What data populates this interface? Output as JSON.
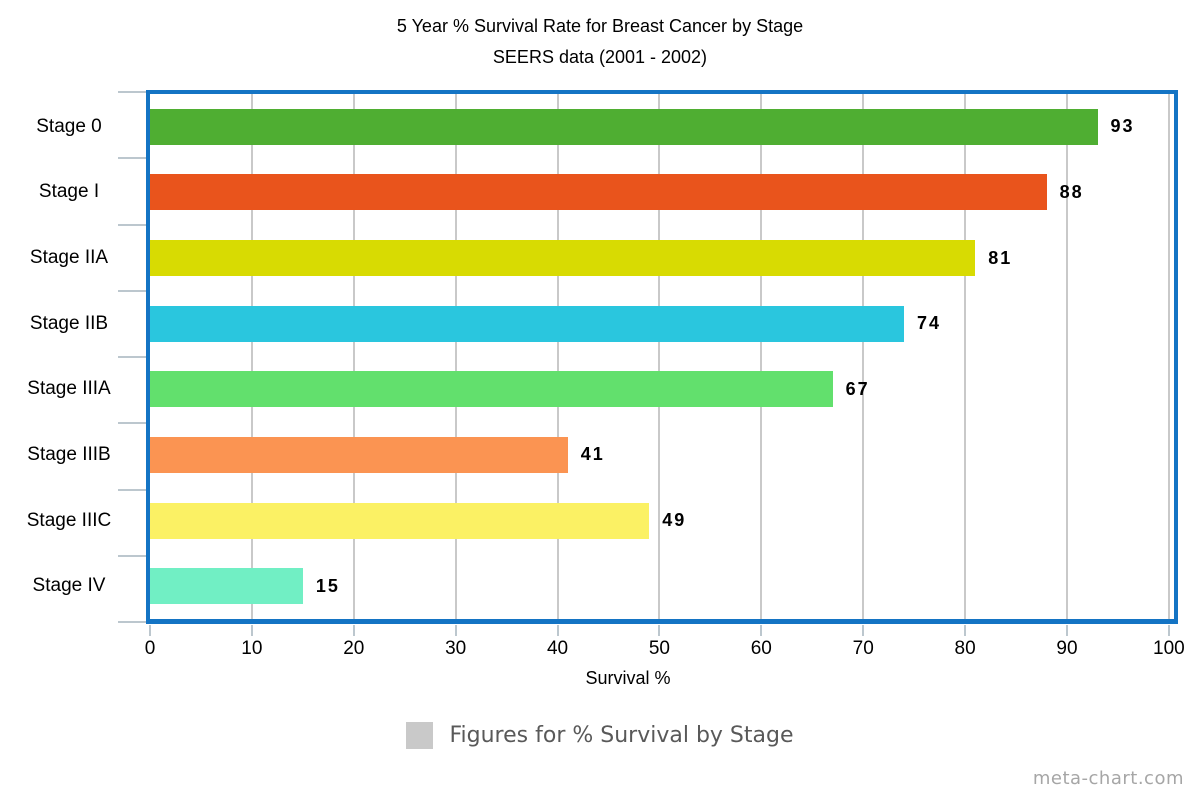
{
  "chart_data": {
    "type": "bar",
    "orientation": "horizontal",
    "title": "5 Year % Survival Rate for Breast Cancer by Stage",
    "subtitle": "SEERS data (2001 - 2002)",
    "categories": [
      "Stage 0",
      "Stage I",
      "Stage IIA",
      "Stage IIB",
      "Stage IIIA",
      "Stage IIIB",
      "Stage IIIC",
      "Stage IV"
    ],
    "values": [
      93,
      88,
      81,
      74,
      67,
      41,
      49,
      15
    ],
    "bar_colors": [
      "#4FAE32",
      "#E9541C",
      "#D8DB02",
      "#2AC6DE",
      "#62E06D",
      "#FB9452",
      "#FBF164",
      "#71EFC4"
    ],
    "xlabel": "Survival %",
    "xlim": [
      0,
      100
    ],
    "x_ticks": [
      0,
      10,
      20,
      30,
      40,
      50,
      60,
      70,
      80,
      90,
      100
    ],
    "grid": true,
    "value_labels": true,
    "legend": {
      "label": "Figures for % Survival by Stage",
      "swatch_color": "#C9C9C9",
      "position": "bottom"
    }
  },
  "colors": {
    "plot_border": "#1474C4",
    "gridline": "#C9C9C9",
    "tick_mark": "#BCC7CE",
    "axis_text": "#000000",
    "value_label": "#000000",
    "legend_text": "#595959",
    "watermark": "#A6A6A6"
  },
  "watermark": "meta-chart.com"
}
